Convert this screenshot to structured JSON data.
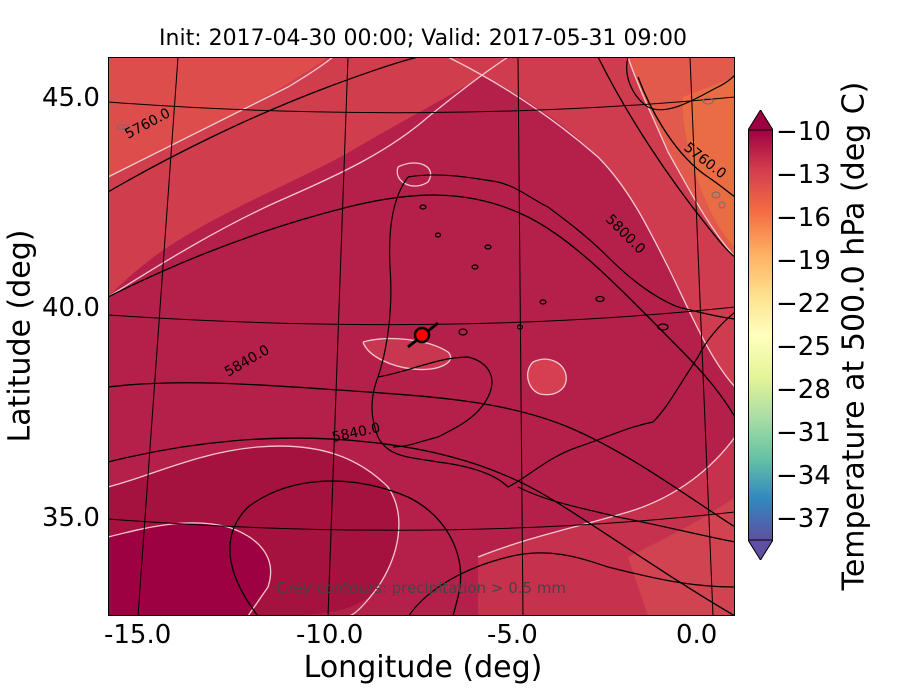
{
  "title": "Init: 2017-04-30 00:00; Valid: 2017-05-31 09:00",
  "xlabel": "Longitude (deg)",
  "ylabel": "Latitude (deg)",
  "colorbar_label": "Temperature at 500.0 hPa (deg C)",
  "note": "Grey contours: precipitation > 0.5 mm",
  "xticks": [
    "-15.0",
    "-10.0",
    "-5.0",
    "0.0"
  ],
  "yticks": [
    "45.0",
    "40.0",
    "35.0"
  ],
  "colorbar_ticks": [
    "−10",
    "−13",
    "−16",
    "−19",
    "−22",
    "−25",
    "−28",
    "−31",
    "−34",
    "−37"
  ],
  "contour_labels": [
    "5760.0",
    "5760.0",
    "5800.0",
    "5840.0",
    "5840.0"
  ],
  "colors": {
    "cold_end": "#5e4fa2",
    "warm_end": "#9e0142",
    "map_base": "#b5204a"
  }
}
